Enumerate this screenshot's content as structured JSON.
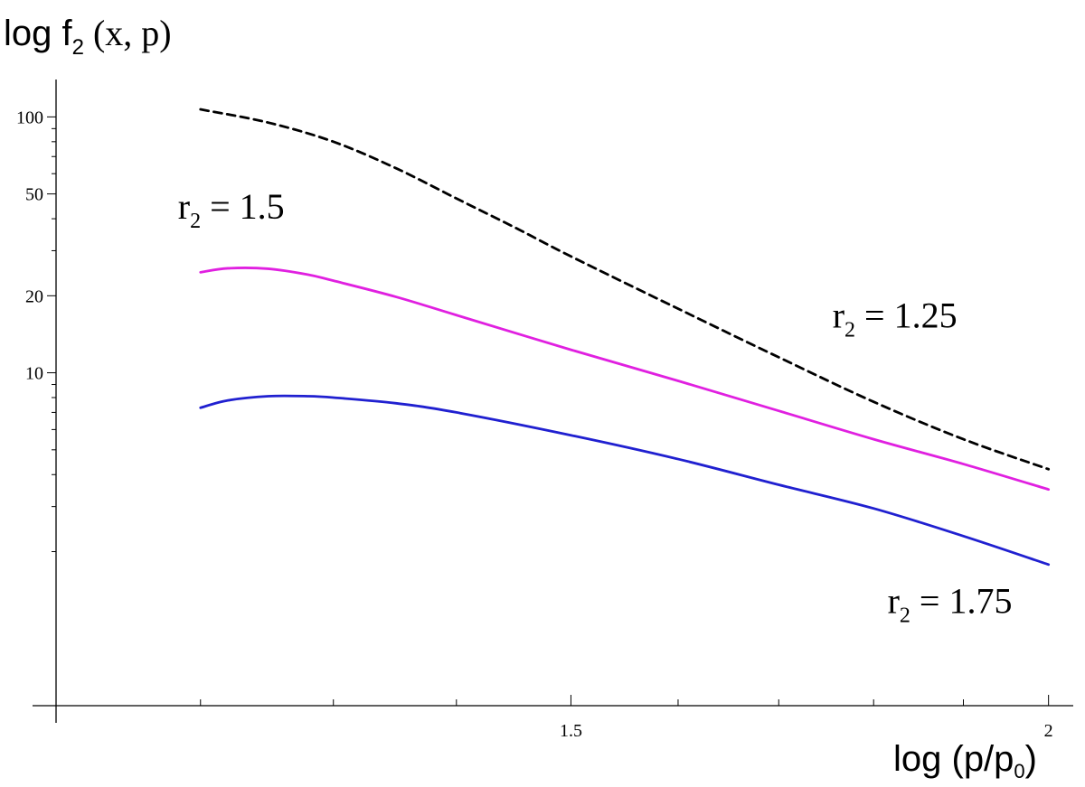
{
  "chart_data": {
    "type": "line",
    "ylabel": {
      "main": "log f",
      "sub": "2",
      "rest": " (x, p)"
    },
    "xlabel": {
      "main": "log (p/p",
      "sub": "0",
      "rest": ")"
    },
    "x_scale": "log",
    "y_scale": "log",
    "xlim": [
      1.1,
      2.03
    ],
    "ylim": [
      0.5,
      140
    ],
    "x_ticks": [
      {
        "value": 1.5,
        "label": "1.5"
      },
      {
        "value": 2,
        "label": "2"
      }
    ],
    "x_minor_ticks": [
      1.2,
      1.3,
      1.4,
      1.6,
      1.7,
      1.8,
      1.9
    ],
    "y_ticks": [
      {
        "value": 10,
        "label": "10"
      },
      {
        "value": 20,
        "label": "20"
      },
      {
        "value": 50,
        "label": "50"
      },
      {
        "value": 100,
        "label": "100"
      }
    ],
    "y_minor_ticks": [
      2,
      3,
      4,
      5,
      6,
      7,
      8,
      9,
      30,
      40,
      60,
      70,
      80,
      90
    ],
    "grid": false,
    "series": [
      {
        "name": "r2 = 1.25",
        "color": "#000000",
        "dash": true,
        "x": [
          1.2,
          1.25,
          1.3,
          1.35,
          1.4,
          1.45,
          1.5,
          1.6,
          1.7,
          1.8,
          1.9,
          2.0
        ],
        "y": [
          107,
          95,
          80,
          63,
          48,
          37,
          28.5,
          17.8,
          11.5,
          7.7,
          5.5,
          4.2
        ]
      },
      {
        "name": "r2 = 1.5",
        "color": "#e020e0",
        "dash": false,
        "x": [
          1.2,
          1.22,
          1.25,
          1.28,
          1.3,
          1.35,
          1.4,
          1.5,
          1.6,
          1.7,
          1.8,
          1.9,
          2.0
        ],
        "y": [
          24.7,
          25.6,
          25.5,
          24.2,
          22.9,
          19.8,
          16.8,
          12.3,
          9.3,
          7.1,
          5.5,
          4.4,
          3.5
        ]
      },
      {
        "name": "r2 = 1.75",
        "color": "#2020d0",
        "dash": false,
        "x": [
          1.2,
          1.22,
          1.25,
          1.28,
          1.3,
          1.35,
          1.4,
          1.5,
          1.6,
          1.7,
          1.8,
          1.9,
          2.0
        ],
        "y": [
          7.3,
          7.8,
          8.1,
          8.1,
          8.0,
          7.6,
          7.0,
          5.7,
          4.6,
          3.65,
          2.95,
          2.3,
          1.78
        ]
      }
    ],
    "annotations": [
      {
        "series": 1,
        "r": "r",
        "sub": "2",
        "rest": " = 1.5",
        "at_x": 1.2,
        "at_y": 40
      },
      {
        "series": 0,
        "r": "r",
        "sub": "2",
        "rest": " = 1.25",
        "at_x": 1.78,
        "at_y": 15
      },
      {
        "series": 2,
        "r": "r",
        "sub": "2",
        "rest": " = 1.75",
        "at_x": 1.84,
        "at_y": 1.15
      }
    ]
  }
}
